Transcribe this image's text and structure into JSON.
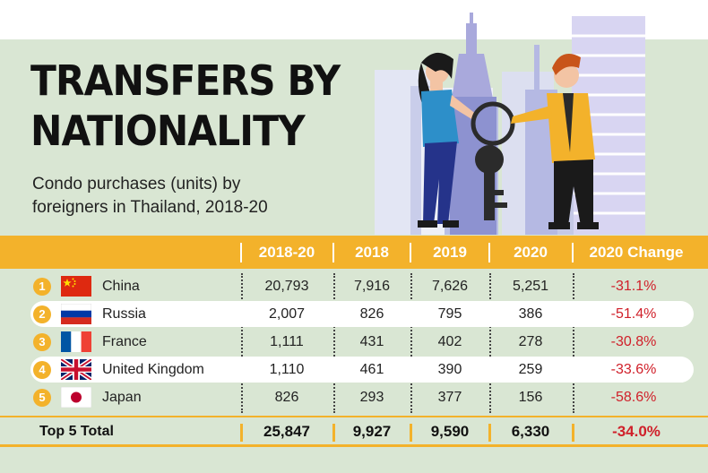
{
  "title_line1": "TRANSFERS BY",
  "title_line2": "NATIONALITY",
  "subtitle_line1": "Condo purchases (units) by",
  "subtitle_line2": "foreigners in Thailand, 2018-20",
  "chart_data": {
    "type": "table",
    "columns": [
      "2018-20",
      "2018",
      "2019",
      "2020",
      "2020 Change"
    ],
    "rows": [
      {
        "rank": "1",
        "country": "China",
        "flag": "china-flag-icon",
        "values": [
          "20,793",
          "7,916",
          "7,626",
          "5,251",
          "-31.1%"
        ]
      },
      {
        "rank": "2",
        "country": "Russia",
        "flag": "russia-flag-icon",
        "values": [
          "2,007",
          "826",
          "795",
          "386",
          "-51.4%"
        ]
      },
      {
        "rank": "3",
        "country": "France",
        "flag": "france-flag-icon",
        "values": [
          "1,111",
          "431",
          "402",
          "278",
          "-30.8%"
        ]
      },
      {
        "rank": "4",
        "country": "United Kingdom",
        "flag": "uk-flag-icon",
        "values": [
          "1,110",
          "461",
          "390",
          "259",
          "-33.6%"
        ]
      },
      {
        "rank": "5",
        "country": "Japan",
        "flag": "japan-flag-icon",
        "values": [
          "826",
          "293",
          "377",
          "156",
          "-58.6%"
        ]
      }
    ],
    "total": {
      "label": "Top 5 Total",
      "values": [
        "25,847",
        "9,927",
        "9,590",
        "6,330",
        "-34.0%"
      ]
    }
  },
  "colors": {
    "accent": "#f3b22b",
    "negative": "#d0202a",
    "background": "#d9e6d3"
  }
}
